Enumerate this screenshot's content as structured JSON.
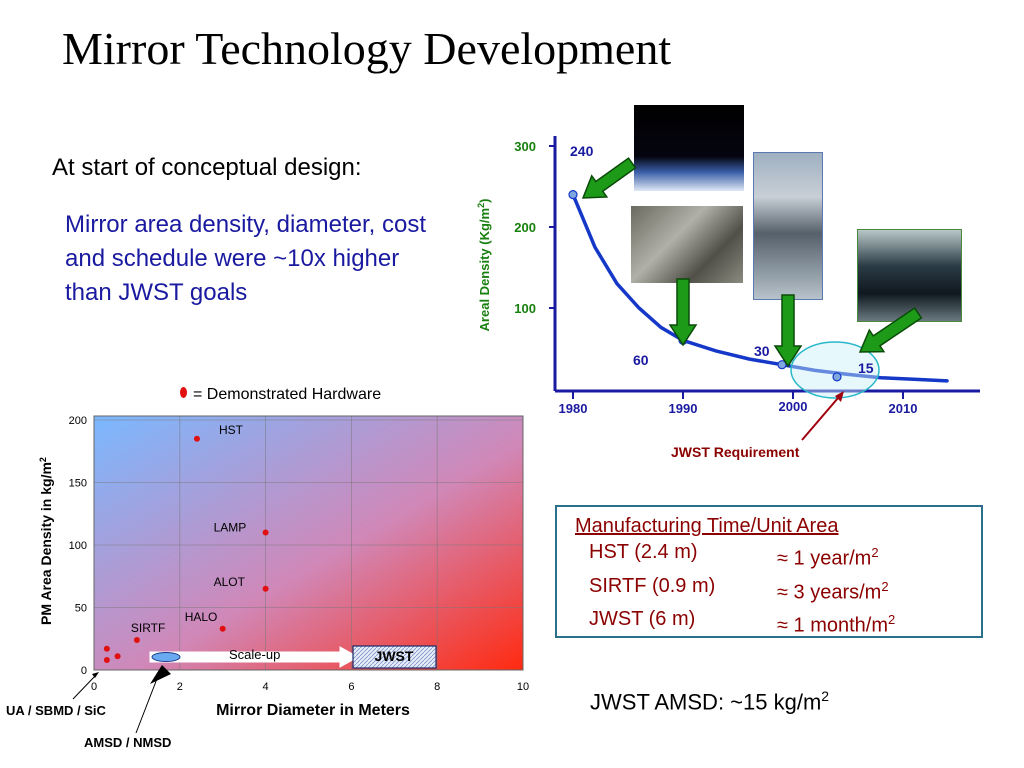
{
  "title": "Mirror Technology Development",
  "intro": "At start of conceptual design:",
  "highlight": "Mirror area density, diameter, cost and schedule were ~10x higher than JWST goals",
  "legend_text": "= Demonstrated Hardware",
  "manufacturing": {
    "heading": "Manufacturing Time/Unit Area",
    "rows": [
      {
        "label": "HST (2.4 m)",
        "value": "≈ 1 year/m",
        "sup": "2"
      },
      {
        "label": "SIRTF (0.9 m)",
        "value": "≈ 3 years/m",
        "sup": "2"
      },
      {
        "label": "JWST (6 m)",
        "value": "≈ 1 month/m",
        "sup": "2"
      }
    ]
  },
  "amsd_note": {
    "text": "JWST AMSD: ~15 kg/m",
    "sup": "2"
  },
  "colors": {
    "blue": "#1a1aa0",
    "green": "#18800e",
    "red": "#e01010",
    "darkred": "#8b0000",
    "curve": "#1538c8"
  },
  "chart_data": [
    {
      "type": "line",
      "xlabel": "",
      "ylabel": "Areal Density (Kg/m2)",
      "xlim": [
        1978,
        2015
      ],
      "ylim": [
        0,
        310
      ],
      "x_ticks": [
        1980,
        1990,
        2000,
        2010
      ],
      "y_ticks": [
        100,
        200,
        300
      ],
      "points": [
        {
          "x": 1980,
          "y": 240,
          "label": "240"
        },
        {
          "x": 1990,
          "y": 60,
          "label": "60"
        },
        {
          "x": 1999,
          "y": 30,
          "label": "30"
        },
        {
          "x": 2004,
          "y": 15,
          "label": "15"
        }
      ],
      "curve": [
        [
          1980,
          240
        ],
        [
          1982,
          175
        ],
        [
          1984,
          130
        ],
        [
          1986,
          100
        ],
        [
          1988,
          76
        ],
        [
          1990,
          60
        ],
        [
          1993,
          47
        ],
        [
          1996,
          37
        ],
        [
          1999,
          30
        ],
        [
          2002,
          23
        ],
        [
          2005,
          18
        ],
        [
          2008,
          14
        ],
        [
          2011,
          12
        ],
        [
          2014,
          10
        ]
      ],
      "annotation": "JWST Requirement"
    },
    {
      "type": "scatter",
      "xlabel": "Mirror Diameter in Meters",
      "ylabel": "PM Area Density in kg/m2",
      "xlim": [
        0,
        10
      ],
      "ylim": [
        0,
        200
      ],
      "x_ticks": [
        0,
        2,
        4,
        6,
        8,
        10
      ],
      "y_ticks": [
        0,
        50,
        100,
        150,
        200
      ],
      "points": [
        {
          "x": 2.4,
          "y": 185,
          "label": "HST"
        },
        {
          "x": 4,
          "y": 110,
          "label": "LAMP"
        },
        {
          "x": 4,
          "y": 65,
          "label": "ALOT"
        },
        {
          "x": 3,
          "y": 33,
          "label": "HALO"
        },
        {
          "x": 1,
          "y": 24,
          "label": "SIRTF"
        },
        {
          "x": 0.3,
          "y": 17,
          "label": ""
        },
        {
          "x": 0.3,
          "y": 8,
          "label": ""
        },
        {
          "x": 0.55,
          "y": 11,
          "label": ""
        }
      ],
      "scaleup_label": "Scale-up",
      "jwst_label": "JWST",
      "callouts": [
        "UA / SBMD / SiC",
        "AMSD / NMSD"
      ]
    }
  ]
}
